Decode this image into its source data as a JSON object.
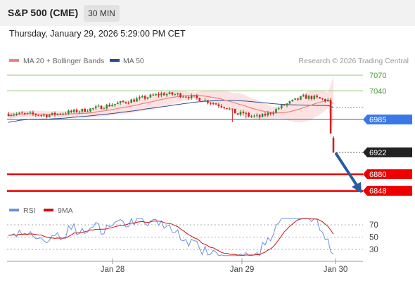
{
  "header": {
    "title": "S&P 500 (CME)",
    "timeframe": "30 MIN",
    "datetime": "Thursday, January 29, 2026 5:29:00 PM CET"
  },
  "legend": {
    "ma20": "MA 20 + Bollinger Bands",
    "ma50": "MA 50",
    "rsi": "RSI",
    "rsi_ma": "9MA",
    "credit": "Research © 2026 Trading Central"
  },
  "colors": {
    "candle_up": "#2e8b2e",
    "candle_down": "#cc2222",
    "ma20": "#f08080",
    "bollinger_fill": "#fbd6d6",
    "ma50": "#2a4d8f",
    "resistance": "#8cc870",
    "pivot": "#3b78e7",
    "support": "#ee0000",
    "last_price": "#222222",
    "arrow": "#2a5ba0",
    "rsi": "#6d8fdd",
    "rsi_ma": "#cc1111"
  },
  "chart_data": [
    {
      "type": "candlestick",
      "timeframe": "30 MIN",
      "x_labels": [
        "Jan 28",
        "Jan 29",
        "Jan 30"
      ],
      "ylim": [
        6840,
        7080
      ],
      "levels": [
        {
          "label": "7070",
          "value": 7070,
          "kind": "resistance"
        },
        {
          "label": "7040",
          "value": 7040,
          "kind": "resistance"
        },
        {
          "label": "6985",
          "value": 6985,
          "kind": "pivot"
        },
        {
          "label": "6922",
          "value": 6922,
          "kind": "last"
        },
        {
          "label": "6880",
          "value": 6880,
          "kind": "support"
        },
        {
          "label": "6848",
          "value": 6848,
          "kind": "support"
        }
      ],
      "series": [
        {
          "name": "MA 20 + Bollinger Bands"
        },
        {
          "name": "MA 50"
        }
      ]
    },
    {
      "type": "line",
      "ylim": [
        20,
        80
      ],
      "y_ticks": [
        "70",
        "50",
        "30"
      ],
      "series": [
        {
          "name": "RSI"
        },
        {
          "name": "9MA"
        }
      ]
    }
  ]
}
